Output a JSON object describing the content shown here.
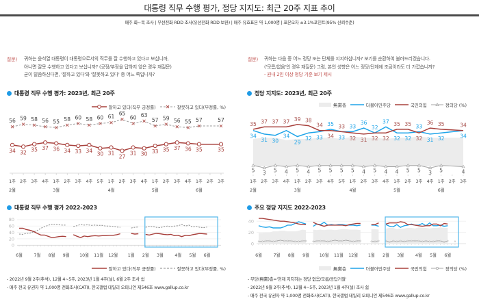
{
  "header": {
    "title": "대통령 직무 수행 평가, 정당 지지도: 최근 20주 지표 추이",
    "subtitle": "매주 화~목 조사 | 무선전화 RDD 조사(유선전화 RDD 보완) | 매주 유효표본 약 1,000명 | 표본오차 ±3.1%포인트(95% 신뢰수준)"
  },
  "approval_panel": {
    "question_label": "질문)",
    "question_lines": [
      "귀하는 윤석열 대통령이 대통령으로서의 직무를 잘 수행하고 있다고 보십니까,",
      "아니면 잘못 수행하고 있다고 보십니까? (긍정/부정을 답하지 않은 경우 재질문)",
      "굳이 말씀하신다면, '잘하고 있다'와 '잘못하고 있다' 중 어느 쪽입니까?"
    ],
    "recent_title": "대통령 직무 수행 평가: 2023년, 최근 20주",
    "trend_title": "대통령 직무 수행 평가 2022-2023",
    "legend": {
      "approve": "잘하고 있다(직무 긍정률)",
      "disapprove": "잘못하고 있다(부정률, %)"
    },
    "footnotes": [
      "- 2022년 9월 2주(추석), 12월 4~5주, 2023년 1월 4주(설), 6월 2주 조사 쉼",
      "- 매주 전국 유권자 약 1,000명 전화조사(CATI), 한국갤럽 데일리 오피니언 제546호 www.gallup.co.kr"
    ]
  },
  "party_panel": {
    "question_label": "질문)",
    "question_lines": [
      "귀하는 다음 중 어느 정당 또는 단체를 지지하십니까? 보기를 순환하여 불러드리겠습니다.",
      "('모름/없음'인 경우 재질문) 그럼, 본인 성향은 어느 정당/단체에 조금이라도 더 가깝습니까?"
    ],
    "question_note": "- 원내 2인 이상 정당 기준 보기 제시",
    "recent_title": "정당 지지도: 2023년, 최근 20주",
    "trend_title": "주요 정당 지지도 2022-2023",
    "legend": {
      "independent": "無黨층",
      "democratic": "더불어민주당",
      "ppp": "국민의힘",
      "justice": "정의당 (%)"
    },
    "footnotes": [
      "- 무당(無黨)층='현재 지지하는 정당 없음/모름/응답거절'",
      "- 2022년 9월 2주(추석), 12월 4~5주, 2023년 1월 4주(설) 조사 쉼",
      "- 매주 전국 유권자 약 1,000명 전화조사(CATI), 한국갤럽 데일리 오피니언 제546호 www.gallup.co.kr"
    ]
  },
  "colors": {
    "accent_bullet": "#1f9be6",
    "question_label": "#c0504d",
    "approve": "#a8403c",
    "disapprove_line": "#9a9a9a",
    "disapprove_marker": "#b55450",
    "disapprove_label": "#444444",
    "democratic": "#1ea4e9",
    "ppp": "#a8403c",
    "justice": "#a6a6a6",
    "independent_area": "#ececec",
    "highlight_box": "#4fb6ea"
  },
  "chart_data": [
    {
      "id": "approval-recent-20w",
      "type": "line",
      "title": "대통령 직무 수행 평가: 2023년, 최근 20주",
      "x": [
        "1주",
        "2주",
        "3주",
        "4주",
        "1주",
        "2주",
        "3주",
        "4주",
        "5주",
        "1주",
        "2주",
        "3주",
        "4주",
        "1주",
        "2주",
        "3주",
        "4주",
        "1주",
        "2주",
        "3주"
      ],
      "month_groups": [
        {
          "label": "2월",
          "weeks": 4
        },
        {
          "label": "3월",
          "weeks": 5
        },
        {
          "label": "4월",
          "weeks": 4
        },
        {
          "label": "5월",
          "weeks": 4
        },
        {
          "label": "6월",
          "weeks": 3
        }
      ],
      "series": [
        {
          "name": "잘못하고 있다(부정률, %)",
          "key": "disapprove",
          "style": "dashed",
          "values": [
            56,
            59,
            58,
            56,
            55,
            58,
            60,
            58,
            60,
            61,
            65,
            60,
            63,
            57,
            59,
            56,
            55,
            57,
            null,
            57
          ]
        },
        {
          "name": "잘하고 있다(직무 긍정률)",
          "key": "approve",
          "style": "solid",
          "values": [
            34,
            32,
            35,
            37,
            36,
            34,
            33,
            34,
            30,
            31,
            27,
            31,
            30,
            33,
            35,
            37,
            36,
            35,
            null,
            35
          ]
        }
      ],
      "data_labels": true,
      "xlabel": "",
      "ylabel": "%",
      "grid": false,
      "legend": "top-right"
    },
    {
      "id": "party-recent-20w",
      "type": "line",
      "title": "정당 지지도: 2023년, 최근 20주",
      "x": [
        "1주",
        "2주",
        "3주",
        "4주",
        "1주",
        "2주",
        "3주",
        "4주",
        "5주",
        "1주",
        "2주",
        "3주",
        "4주",
        "1주",
        "2주",
        "3주",
        "4주",
        "1주",
        "2주",
        "3주"
      ],
      "month_groups": [
        {
          "label": "2월",
          "weeks": 4
        },
        {
          "label": "3월",
          "weeks": 5
        },
        {
          "label": "4월",
          "weeks": 4
        },
        {
          "label": "5월",
          "weeks": 4
        },
        {
          "label": "6월",
          "weeks": 3
        }
      ],
      "series": [
        {
          "name": "無黨층",
          "key": "independent",
          "style": "area",
          "labeled": false,
          "values": [
            27,
            28,
            28,
            26,
            27,
            27,
            28,
            28,
            27,
            29,
            28,
            28,
            27,
            28,
            28,
            29,
            28,
            28,
            null,
            28
          ]
        },
        {
          "name": "정의당 (%)",
          "key": "justice",
          "style": "solid",
          "values": [
            5,
            3,
            5,
            4,
            5,
            4,
            5,
            5,
            5,
            5,
            4,
            5,
            4,
            4,
            5,
            5,
            3,
            5,
            null,
            4
          ]
        },
        {
          "name": "더불어민주당",
          "key": "democratic",
          "style": "solid",
          "values": [
            34,
            31,
            30,
            34,
            29,
            32,
            33,
            35,
            33,
            33,
            36,
            32,
            37,
            32,
            32,
            33,
            31,
            32,
            null,
            34
          ]
        },
        {
          "name": "국민의힘",
          "key": "ppp",
          "style": "solid",
          "values": [
            35,
            37,
            37,
            37,
            39,
            38,
            34,
            34,
            33,
            32,
            31,
            32,
            32,
            35,
            35,
            32,
            36,
            35,
            null,
            34
          ]
        }
      ],
      "data_labels": true,
      "xlabel": "",
      "ylabel": "%",
      "grid": false,
      "legend": "top-right"
    },
    {
      "id": "approval-trend-2022-2023",
      "type": "line",
      "title": "대통령 직무 수행 평가 2022-2023",
      "month_groups": [
        {
          "label": "6월",
          "weeks": 5
        },
        {
          "label": "7월",
          "weeks": 4
        },
        {
          "label": "8월",
          "weeks": 4
        },
        {
          "label": "9월",
          "weeks": 5
        },
        {
          "label": "10월",
          "weeks": 4
        },
        {
          "label": "11월",
          "weeks": 4
        },
        {
          "label": "12월",
          "weeks": 5
        },
        {
          "label": "1월",
          "weeks": 4
        },
        {
          "label": "2월",
          "weeks": 4
        },
        {
          "label": "3월",
          "weeks": 5
        },
        {
          "label": "4월",
          "weeks": 4
        },
        {
          "label": "5월",
          "weeks": 4
        },
        {
          "label": "6월",
          "weeks": 3
        }
      ],
      "yticks": [
        "0",
        "20",
        "40",
        "60",
        "80"
      ],
      "ylim": [
        0,
        80
      ],
      "series": [
        {
          "name": "잘못하고 있다(부정률, %)",
          "key": "disapprove",
          "style": "dashed",
          "values": [
            35,
            34,
            37,
            38,
            42,
            46,
            53,
            58,
            62,
            66,
            66,
            64,
            63,
            63,
            null,
            59,
            61,
            65,
            63,
            64,
            62,
            63,
            62,
            62,
            60,
            60,
            59,
            57,
            56,
            null,
            null,
            54,
            56,
            57,
            null,
            56,
            59,
            58,
            56,
            55,
            58,
            60,
            58,
            60,
            61,
            65,
            60,
            63,
            57,
            59,
            56,
            55,
            57,
            null,
            57
          ]
        },
        {
          "name": "잘하고 있다(직무 긍정률)",
          "key": "approve",
          "style": "solid",
          "values": [
            53,
            53,
            49,
            47,
            43,
            37,
            32,
            32,
            28,
            24,
            25,
            27,
            28,
            27,
            null,
            33,
            28,
            24,
            29,
            27,
            29,
            30,
            29,
            30,
            30,
            31,
            31,
            33,
            36,
            null,
            null,
            37,
            35,
            36,
            null,
            34,
            32,
            35,
            37,
            36,
            34,
            33,
            34,
            30,
            31,
            27,
            31,
            30,
            33,
            35,
            37,
            36,
            35,
            null,
            35
          ]
        }
      ],
      "highlight": {
        "label": "최근 20주",
        "from_month": "2월",
        "to_month": "6월"
      },
      "grid": true,
      "legend": "bottom-right"
    },
    {
      "id": "party-trend-2022-2023",
      "type": "line",
      "title": "주요 정당 지지도 2022-2023",
      "month_groups": [
        {
          "label": "6월",
          "weeks": 5
        },
        {
          "label": "7월",
          "weeks": 4
        },
        {
          "label": "8월",
          "weeks": 4
        },
        {
          "label": "9월",
          "weeks": 5
        },
        {
          "label": "10월",
          "weeks": 4
        },
        {
          "label": "11월",
          "weeks": 4
        },
        {
          "label": "12월",
          "weeks": 5
        },
        {
          "label": "1월",
          "weeks": 4
        },
        {
          "label": "2월",
          "weeks": 4
        },
        {
          "label": "3월",
          "weeks": 5
        },
        {
          "label": "4월",
          "weeks": 4
        },
        {
          "label": "5월",
          "weeks": 4
        },
        {
          "label": "6월",
          "weeks": 3
        }
      ],
      "yticks": [
        "0",
        "20",
        "40"
      ],
      "ylim": [
        0,
        45
      ],
      "series": [
        {
          "name": "無黨층",
          "key": "independent",
          "style": "area",
          "values": [
            19,
            19,
            20,
            20,
            22,
            22,
            23,
            23,
            22,
            22,
            22,
            23,
            25,
            24,
            null,
            25,
            24,
            25,
            24,
            25,
            25,
            24,
            25,
            26,
            26,
            25,
            25,
            25,
            24,
            null,
            null,
            26,
            26,
            25,
            null,
            27,
            28,
            28,
            26,
            27,
            27,
            28,
            28,
            27,
            29,
            28,
            28,
            27,
            28,
            28,
            29,
            28,
            28,
            null,
            28
          ]
        },
        {
          "name": "정의당 (%)",
          "key": "justice",
          "style": "solid",
          "values": [
            4,
            4,
            5,
            5,
            4,
            5,
            6,
            5,
            5,
            5,
            4,
            4,
            5,
            5,
            null,
            4,
            5,
            5,
            5,
            4,
            5,
            6,
            5,
            5,
            6,
            5,
            4,
            5,
            5,
            null,
            null,
            4,
            4,
            5,
            null,
            5,
            3,
            5,
            4,
            5,
            4,
            5,
            5,
            5,
            5,
            4,
            5,
            4,
            4,
            5,
            5,
            3,
            5,
            null,
            4
          ]
        },
        {
          "name": "더불어민주당",
          "key": "democratic",
          "style": "solid",
          "values": [
            32,
            30,
            29,
            30,
            28,
            28,
            28,
            30,
            33,
            33,
            36,
            39,
            37,
            35,
            null,
            31,
            35,
            34,
            38,
            33,
            34,
            33,
            34,
            34,
            33,
            33,
            33,
            32,
            33,
            null,
            null,
            33,
            33,
            31,
            null,
            34,
            31,
            30,
            34,
            29,
            32,
            33,
            35,
            33,
            33,
            36,
            32,
            37,
            32,
            32,
            33,
            31,
            32,
            null,
            34
          ]
        },
        {
          "name": "국민의힘",
          "key": "ppp",
          "style": "solid",
          "values": [
            45,
            45,
            44,
            43,
            42,
            41,
            40,
            40,
            39,
            38,
            37,
            35,
            34,
            34,
            null,
            38,
            35,
            33,
            31,
            33,
            33,
            33,
            33,
            33,
            32,
            34,
            35,
            36,
            36,
            null,
            null,
            34,
            34,
            37,
            null,
            35,
            37,
            37,
            37,
            39,
            38,
            34,
            34,
            33,
            32,
            31,
            32,
            32,
            35,
            35,
            32,
            36,
            35,
            null,
            34
          ]
        }
      ],
      "highlight": {
        "label": "최근 20주",
        "from_month": "2월",
        "to_month": "6월"
      },
      "grid": true,
      "legend": "bottom-right"
    }
  ]
}
